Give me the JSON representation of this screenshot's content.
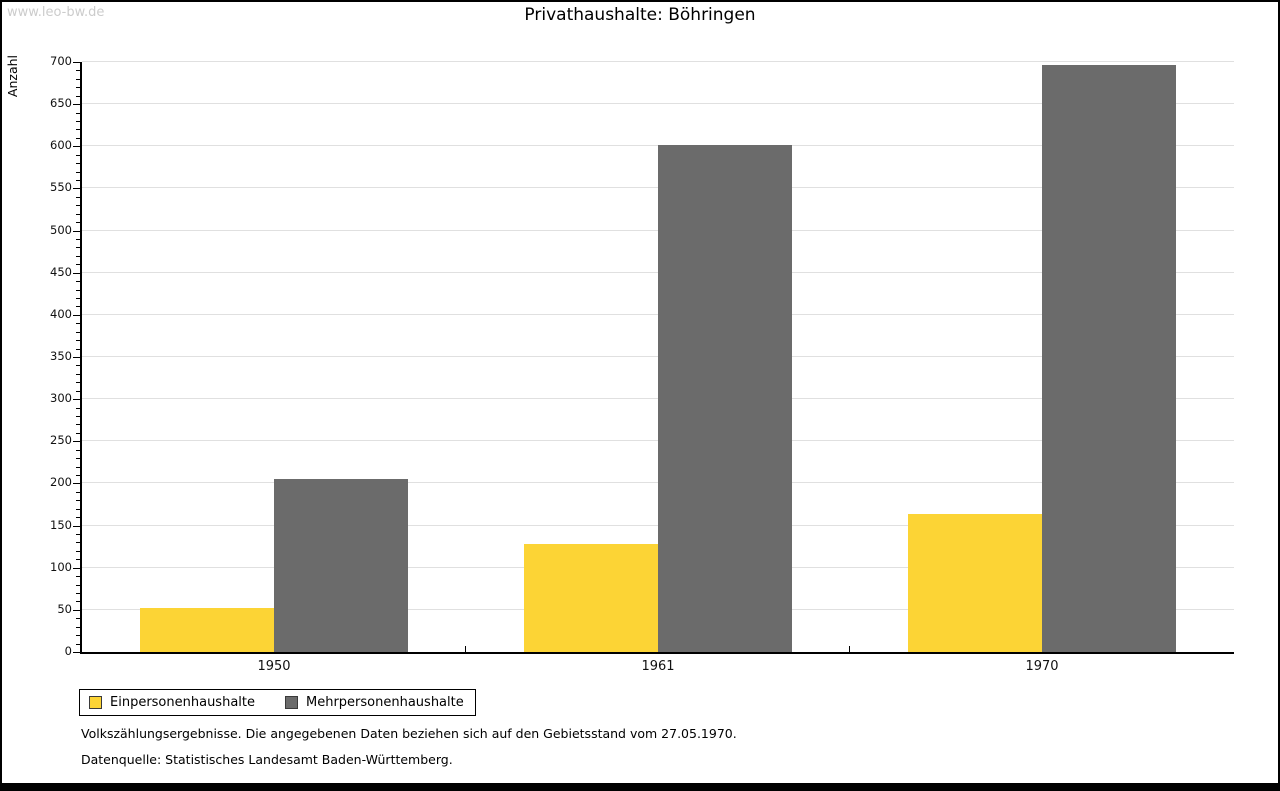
{
  "watermark": "www.leo-bw.de",
  "title": "Privathaushalte: Böhringen",
  "footnotes": {
    "line1": "Volkszählungsergebnisse. Die angegebenen Daten beziehen sich auf den Gebietsstand vom 27.05.1970.",
    "line2": "Datenquelle: Statistisches Landesamt Baden-Württemberg."
  },
  "theme": {
    "watermark_color": "#cccccc",
    "grid_color": "#e0e0e0",
    "axis_color": "#000000"
  },
  "chart_data": {
    "type": "bar",
    "title": "Privathaushalte: Böhringen",
    "categories": [
      "1950",
      "1961",
      "1970"
    ],
    "series": [
      {
        "name": "Einpersonenhaushalte",
        "color": "#fcd435",
        "values": [
          52,
          128,
          164
        ]
      },
      {
        "name": "Mehrpersonenhaushalte",
        "color": "#6b6b6b",
        "values": [
          205,
          602,
          697
        ]
      }
    ],
    "xlabel": "",
    "ylabel": "Anzahl",
    "ylim": [
      0,
      700
    ],
    "ytick_step": 50,
    "minor_tick_step": 10,
    "grid": true,
    "legend_position": "bottom-left"
  }
}
